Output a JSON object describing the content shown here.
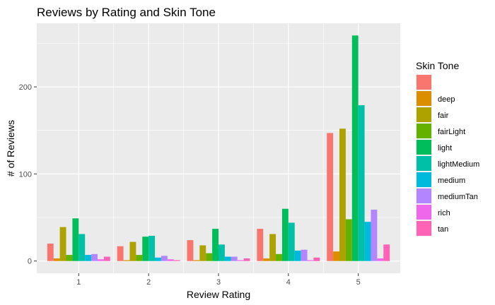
{
  "chart_data": {
    "type": "bar",
    "title": "Reviews by Rating and Skin Tone",
    "xlabel": "Review Rating",
    "ylabel": "# of Reviews",
    "categories": [
      "1",
      "2",
      "3",
      "4",
      "5"
    ],
    "yticks": [
      0,
      100,
      200
    ],
    "ylim": [
      -14,
      273
    ],
    "grid": true,
    "legend": {
      "title": "Skin Tone",
      "position": "right"
    },
    "series": [
      {
        "name": "",
        "color": "#F8766D",
        "values": [
          20,
          17,
          24,
          37,
          147
        ]
      },
      {
        "name": "deep",
        "color": "#DB8E00",
        "values": [
          3,
          1,
          1,
          3,
          11
        ]
      },
      {
        "name": "fair",
        "color": "#AEA200",
        "values": [
          39,
          22,
          18,
          31,
          152
        ]
      },
      {
        "name": "fairLight",
        "color": "#64B200",
        "values": [
          7,
          7,
          9,
          8,
          48
        ]
      },
      {
        "name": "light",
        "color": "#00BD5C",
        "values": [
          49,
          28,
          37,
          60,
          259
        ]
      },
      {
        "name": "lightMedium",
        "color": "#00C1A7",
        "values": [
          31,
          29,
          19,
          44,
          179
        ]
      },
      {
        "name": "medium",
        "color": "#00BADE",
        "values": [
          7,
          4,
          5,
          12,
          45
        ]
      },
      {
        "name": "mediumTan",
        "color": "#B385FF",
        "values": [
          8,
          6,
          5,
          13,
          59
        ]
      },
      {
        "name": "rich",
        "color": "#EF67EB",
        "values": [
          2,
          2,
          1,
          1,
          3
        ]
      },
      {
        "name": "tan",
        "color": "#FF63B6",
        "values": [
          5,
          1,
          3,
          4,
          19
        ]
      }
    ]
  }
}
